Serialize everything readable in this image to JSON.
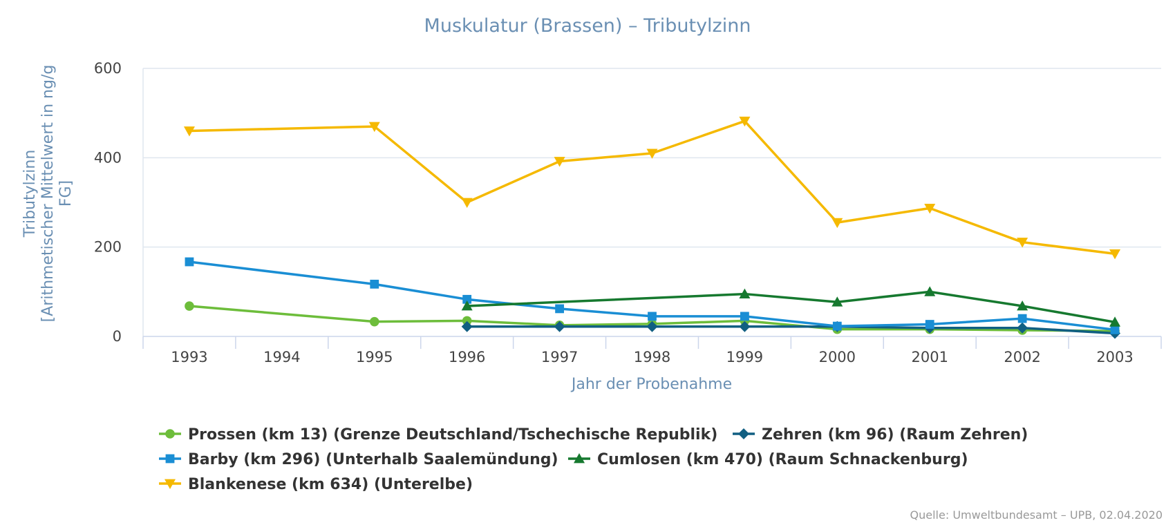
{
  "chart_data": {
    "type": "line",
    "title": "Muskulatur (Brassen) – Tributylzinn",
    "xlabel": "Jahr der Probenahme",
    "ylabel_lines": [
      "Tributylzinn",
      "[Arithmetischer Mittelwert in ng/g",
      "FG]"
    ],
    "categories": [
      "1993",
      "1994",
      "1995",
      "1996",
      "1997",
      "1998",
      "1999",
      "2000",
      "2001",
      "2002",
      "2003"
    ],
    "ylim": [
      0,
      600
    ],
    "yticks": [
      0,
      200,
      400,
      600
    ],
    "grid": true,
    "legend_position": "bottom",
    "series": [
      {
        "name": "Prossen (km 13) (Grenze Deutschland/Tschechische Republik)",
        "color": "#6dbd3b",
        "marker": "circle",
        "values": [
          68,
          null,
          33,
          35,
          25,
          28,
          35,
          16,
          16,
          14,
          12
        ]
      },
      {
        "name": "Zehren (km 96) (Raum Zehren)",
        "color": "#115f82",
        "marker": "diamond",
        "values": [
          null,
          null,
          null,
          22,
          22,
          22,
          22,
          22,
          19,
          19,
          7
        ]
      },
      {
        "name": "Barby (km 296) (Unterhalb Saalemündung)",
        "color": "#1a8ed4",
        "marker": "square",
        "values": [
          167,
          null,
          117,
          83,
          62,
          45,
          45,
          23,
          27,
          40,
          15
        ]
      },
      {
        "name": "Cumlosen (km 470) (Raum Schnackenburg)",
        "color": "#16792f",
        "marker": "triangle",
        "values": [
          null,
          null,
          null,
          68,
          null,
          null,
          95,
          77,
          100,
          68,
          32
        ]
      },
      {
        "name": "Blankenese (km 634) (Unterelbe)",
        "color": "#f5b900",
        "marker": "triangle-down",
        "values": [
          460,
          null,
          470,
          300,
          392,
          410,
          482,
          255,
          287,
          211,
          185
        ]
      }
    ]
  },
  "credit": "Quelle: Umweltbundesamt – UPB, 02.04.2020"
}
